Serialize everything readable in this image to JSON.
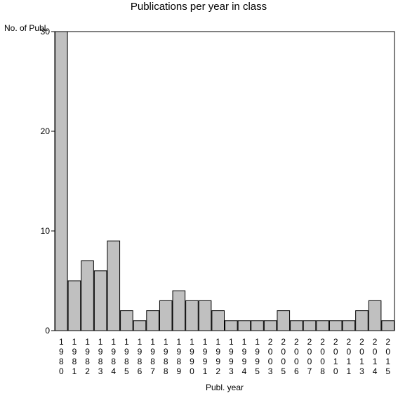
{
  "chart_data": {
    "type": "bar",
    "title": "Publications per year in class",
    "ylabel": "No. of Publ.",
    "xlabel": "Publ. year",
    "categories": [
      "1980",
      "1981",
      "1982",
      "1983",
      "1984",
      "1985",
      "1986",
      "1987",
      "1988",
      "1989",
      "1990",
      "1991",
      "1992",
      "1993",
      "1994",
      "1995",
      "2003",
      "2005",
      "2006",
      "2007",
      "2008",
      "2010",
      "2011",
      "2013",
      "2014",
      "2015"
    ],
    "values": [
      30,
      5,
      7,
      6,
      9,
      2,
      1,
      2,
      3,
      4,
      3,
      3,
      2,
      1,
      1,
      1,
      1,
      2,
      1,
      1,
      1,
      1,
      1,
      2,
      3,
      1
    ],
    "ylim": [
      0,
      30
    ],
    "yticks": [
      0,
      10,
      20,
      30
    ],
    "grid": false,
    "colors": {
      "bar_fill": "#c0c0c0",
      "bar_stroke": "#000000"
    }
  }
}
